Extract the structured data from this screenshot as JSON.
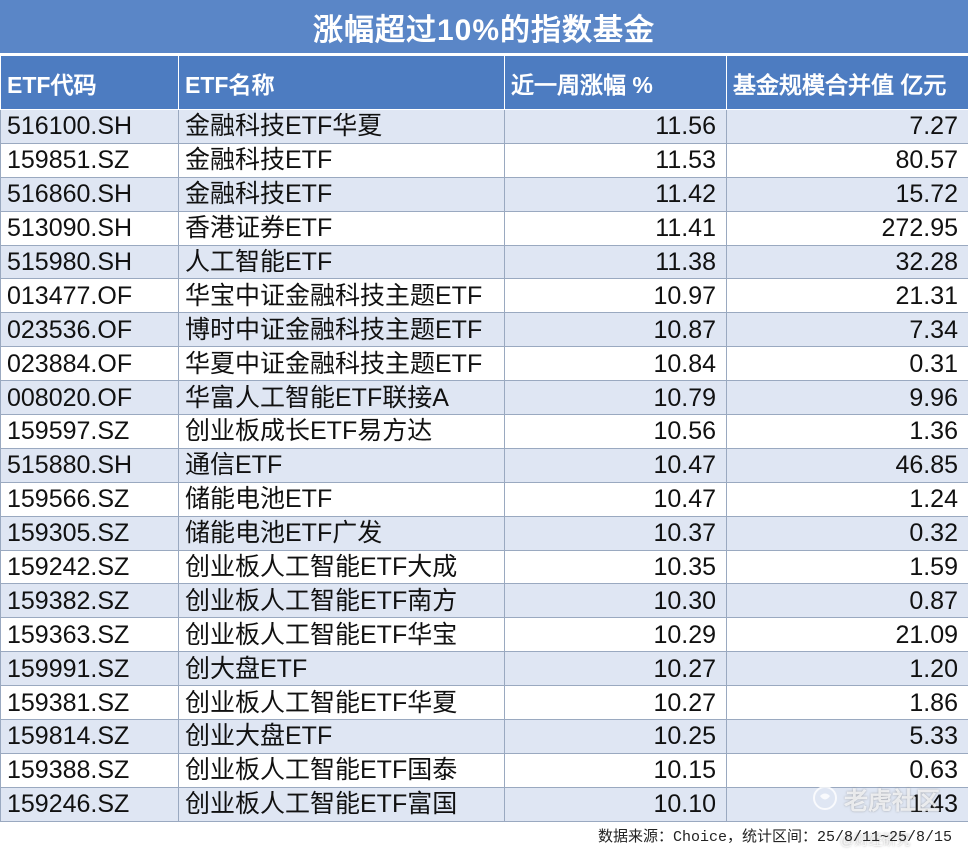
{
  "title": "涨幅超过10%的指数基金",
  "columns": [
    "ETF代码",
    "ETF名称",
    "近一周涨幅 %",
    "基金规模合并值 亿元"
  ],
  "rows": [
    {
      "code": "516100.SH",
      "name": "金融科技ETF华夏",
      "change": "11.56",
      "size": "7.27"
    },
    {
      "code": "159851.SZ",
      "name": "金融科技ETF",
      "change": "11.53",
      "size": "80.57"
    },
    {
      "code": "516860.SH",
      "name": "金融科技ETF",
      "change": "11.42",
      "size": "15.72"
    },
    {
      "code": "513090.SH",
      "name": "香港证券ETF",
      "change": "11.41",
      "size": "272.95"
    },
    {
      "code": "515980.SH",
      "name": "人工智能ETF",
      "change": "11.38",
      "size": "32.28"
    },
    {
      "code": "013477.OF",
      "name": "华宝中证金融科技主题ETF",
      "change": "10.97",
      "size": "21.31"
    },
    {
      "code": "023536.OF",
      "name": "博时中证金融科技主题ETF",
      "change": "10.87",
      "size": "7.34"
    },
    {
      "code": "023884.OF",
      "name": "华夏中证金融科技主题ETF",
      "change": "10.84",
      "size": "0.31"
    },
    {
      "code": "008020.OF",
      "name": "华富人工智能ETF联接A",
      "change": "10.79",
      "size": "9.96"
    },
    {
      "code": "159597.SZ",
      "name": "创业板成长ETF易方达",
      "change": "10.56",
      "size": "1.36"
    },
    {
      "code": "515880.SH",
      "name": "通信ETF",
      "change": "10.47",
      "size": "46.85"
    },
    {
      "code": "159566.SZ",
      "name": "储能电池ETF",
      "change": "10.47",
      "size": "1.24"
    },
    {
      "code": "159305.SZ",
      "name": "储能电池ETF广发",
      "change": "10.37",
      "size": "0.32"
    },
    {
      "code": "159242.SZ",
      "name": "创业板人工智能ETF大成",
      "change": "10.35",
      "size": "1.59"
    },
    {
      "code": "159382.SZ",
      "name": "创业板人工智能ETF南方",
      "change": "10.30",
      "size": "0.87"
    },
    {
      "code": "159363.SZ",
      "name": "创业板人工智能ETF华宝",
      "change": "10.29",
      "size": "21.09"
    },
    {
      "code": "159991.SZ",
      "name": "创大盘ETF",
      "change": "10.27",
      "size": "1.20"
    },
    {
      "code": "159381.SZ",
      "name": "创业板人工智能ETF华夏",
      "change": "10.27",
      "size": "1.86"
    },
    {
      "code": "159814.SZ",
      "name": "创业大盘ETF",
      "change": "10.25",
      "size": "5.33"
    },
    {
      "code": "159388.SZ",
      "name": "创业板人工智能ETF国泰",
      "change": "10.15",
      "size": "0.63"
    },
    {
      "code": "159246.SZ",
      "name": "创业板人工智能ETF富国",
      "change": "10.10",
      "size": "1.43"
    }
  ],
  "source": "数据来源：Choice，统计区间：25/8/11~25/8/15",
  "watermark": "老虎社区",
  "watermark_sub": "@财经研究",
  "colors": {
    "title_bg": "#5a86c7",
    "header_bg": "#4d7cc1",
    "stripe": "#dfe6f3"
  },
  "icons": {
    "watermark": "tiger-logo-icon"
  }
}
